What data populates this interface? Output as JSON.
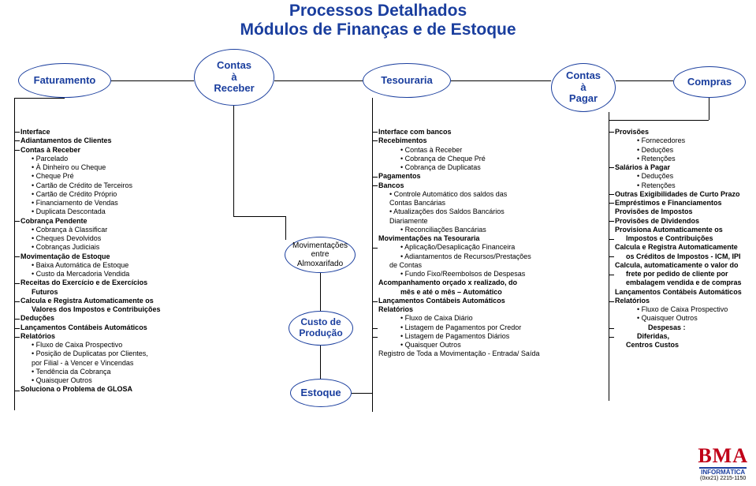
{
  "title": {
    "l1": "Processos Detalhados",
    "l2": "Módulos de Finanças e de Estoque"
  },
  "nodes": {
    "fatur": "Faturamento",
    "contas_receber": "Contas\nà\nReceber",
    "tesouraria": "Tesouraria",
    "contas_pagar": "Contas\nà\nPagar",
    "compras": "Compras",
    "movim": "Movimentações\nentre\nAlmoxarifado",
    "custo": "Custo de\nProdução",
    "estoque": "Estoque"
  },
  "col1": [
    {
      "t": "Interface",
      "b": 1,
      "i": 0
    },
    {
      "t": "Adiantamentos de Clientes",
      "b": 1,
      "i": 0
    },
    {
      "t": "Contas à Receber",
      "b": 1,
      "i": 0
    },
    {
      "t": "Parcelado",
      "b": 0,
      "i": 1,
      "d": 1
    },
    {
      "t": "À Dinheiro ou Cheque",
      "b": 0,
      "i": 1,
      "d": 1
    },
    {
      "t": "Cheque Pré",
      "b": 0,
      "i": 1,
      "d": 1
    },
    {
      "t": "Cartão de Crédito de Terceiros",
      "b": 0,
      "i": 1,
      "d": 1
    },
    {
      "t": "Cartão de Crédito Próprio",
      "b": 0,
      "i": 1,
      "d": 1
    },
    {
      "t": "Financiamento de Vendas",
      "b": 0,
      "i": 1,
      "d": 1
    },
    {
      "t": "Duplicata Descontada",
      "b": 0,
      "i": 1,
      "d": 1
    },
    {
      "t": "Cobrança Pendente",
      "b": 1,
      "i": 0
    },
    {
      "t": "Cobrança à Classificar",
      "b": 0,
      "i": 1,
      "d": 1
    },
    {
      "t": "Cheques Devolvidos",
      "b": 0,
      "i": 1,
      "d": 1
    },
    {
      "t": "Cobranças Judiciais",
      "b": 0,
      "i": 1,
      "d": 1
    },
    {
      "t": "Movimentação de Estoque",
      "b": 1,
      "i": 0
    },
    {
      "t": "Baixa Automática de Estoque",
      "b": 0,
      "i": 1,
      "d": 1
    },
    {
      "t": "Custo da Mercadoria Vendida",
      "b": 0,
      "i": 1,
      "d": 1
    },
    {
      "t": "Receitas do Exercício e de Exercícios",
      "b": 1,
      "i": 0
    },
    {
      "t": "Futuros",
      "b": 1,
      "i": 1
    },
    {
      "t": "Calcula e Registra Automaticamente os",
      "b": 1,
      "i": 0
    },
    {
      "t": "Valores dos Impostos e Contribuições",
      "b": 1,
      "i": 1
    },
    {
      "t": "Deduções",
      "b": 1,
      "i": 0
    },
    {
      "t": "Lançamentos Contábeis Automáticos",
      "b": 1,
      "i": 0
    },
    {
      "t": "Relatórios",
      "b": 1,
      "i": 0
    },
    {
      "t": "Fluxo de Caixa Prospectivo",
      "b": 0,
      "i": 1,
      "d": 1
    },
    {
      "t": "Posição de Duplicatas por Clientes,",
      "b": 0,
      "i": 1,
      "d": 1
    },
    {
      "t": "por Filial - à Vencer e Vincendas",
      "b": 0,
      "i": 1
    },
    {
      "t": "Tendência da Cobrança",
      "b": 0,
      "i": 1,
      "d": 1
    },
    {
      "t": "Quaisquer Outros",
      "b": 0,
      "i": 1,
      "d": 1
    },
    {
      "t": "Soluciona o Problema de GLOSA",
      "b": 1,
      "i": 0
    }
  ],
  "col2": [
    {
      "t": "Interface com bancos",
      "b": 1,
      "i": 0
    },
    {
      "t": "Recebimentos",
      "b": 1,
      "i": 0
    },
    {
      "t": "Contas à Receber",
      "b": 0,
      "i": 2,
      "d": 1
    },
    {
      "t": "Cobrança de Cheque Pré",
      "b": 0,
      "i": 2,
      "d": 1
    },
    {
      "t": "Cobrança de Duplicatas",
      "b": 0,
      "i": 2,
      "d": 1
    },
    {
      "t": "Pagamentos",
      "b": 1,
      "i": 0
    },
    {
      "t": "Bancos",
      "b": 1,
      "i": 0
    },
    {
      "t": "Controle Automático dos saldos das",
      "b": 0,
      "i": 1,
      "d": 1
    },
    {
      "t": "Contas Bancárias",
      "b": 0,
      "i": 1
    },
    {
      "t": "Atualizações dos Saldos Bancários",
      "b": 0,
      "i": 1,
      "d": 1
    },
    {
      "t": "Diariamente",
      "b": 0,
      "i": 1
    },
    {
      "t": "Reconciliações Bancárias",
      "b": 0,
      "i": 2,
      "d": 1
    },
    {
      "t": " ",
      "b": 0,
      "i": 0
    },
    {
      "t": "Movimentações na Tesouraria",
      "b": 1,
      "i": 0
    },
    {
      "t": "Aplicação/Desaplicação Financeira",
      "b": 0,
      "i": 2,
      "d": 1
    },
    {
      "t": "Adiantamentos de Recursos/Prestações",
      "b": 0,
      "i": 2,
      "d": 1
    },
    {
      "t": "de Contas",
      "b": 0,
      "i": 1
    },
    {
      "t": "Fundo Fixo/Reembolsos de Despesas",
      "b": 0,
      "i": 2,
      "d": 1
    },
    {
      "t": " ",
      "b": 0,
      "i": 0
    },
    {
      "t": "Acompanhamento orçado x realizado, do",
      "b": 1,
      "i": 0
    },
    {
      "t": "mês e até o mês – Automático",
      "b": 1,
      "i": 2
    },
    {
      "t": " ",
      "b": 0,
      "i": 0
    },
    {
      "t": "Lançamentos Contábeis Automáticos",
      "b": 1,
      "i": 0
    },
    {
      "t": "Relatórios",
      "b": 1,
      "i": 0
    },
    {
      "t": "Fluxo de Caixa Diário",
      "b": 0,
      "i": 2,
      "d": 1
    },
    {
      "t": "Listagem de Pagamentos por Credor",
      "b": 0,
      "i": 2,
      "d": 1
    },
    {
      "t": "Listagem de Pagamentos Diários",
      "b": 0,
      "i": 2,
      "d": 1
    },
    {
      "t": "Quaisquer Outros",
      "b": 0,
      "i": 2,
      "d": 1
    },
    {
      "t": "Registro de Toda a Movimentação - Entrada/ Saída",
      "b": 0,
      "i": 0
    }
  ],
  "col3": [
    {
      "t": "Provisões",
      "b": 1,
      "i": 0
    },
    {
      "t": "Fornecedores",
      "b": 0,
      "i": 2,
      "d": 1
    },
    {
      "t": "Deduções",
      "b": 0,
      "i": 2,
      "d": 1
    },
    {
      "t": "Retenções",
      "b": 0,
      "i": 2,
      "d": 1
    },
    {
      "t": "Salários à Pagar",
      "b": 1,
      "i": 0
    },
    {
      "t": "Deduções",
      "b": 0,
      "i": 2,
      "d": 1
    },
    {
      "t": "Retenções",
      "b": 0,
      "i": 2,
      "d": 1
    },
    {
      "t": "Outras Exigibilidades de Curto Prazo",
      "b": 1,
      "i": 0
    },
    {
      "t": "Empréstimos e Financiamentos",
      "b": 1,
      "i": 0
    },
    {
      "t": " ",
      "b": 0,
      "i": 0
    },
    {
      "t": "Provisões de Impostos",
      "b": 1,
      "i": 0
    },
    {
      "t": " ",
      "b": 0,
      "i": 0
    },
    {
      "t": "Provisões de Dividendos",
      "b": 1,
      "i": 0
    },
    {
      "t": " ",
      "b": 0,
      "i": 0
    },
    {
      "t": "Provisiona Automaticamente os",
      "b": 1,
      "i": 0
    },
    {
      "t": "Impostos e Contribuições",
      "b": 1,
      "i": 1
    },
    {
      "t": "Calcula e Registra Automaticamente",
      "b": 1,
      "i": 0
    },
    {
      "t": "os Créditos de Impostos - ICM, IPI",
      "b": 1,
      "i": 1
    },
    {
      "t": " ",
      "b": 0,
      "i": 0
    },
    {
      "t": "Calcula, automaticamente o valor do",
      "b": 1,
      "i": 0
    },
    {
      "t": "frete por pedido de cliente por",
      "b": 1,
      "i": 1
    },
    {
      "t": "embalagem vendida e de compras",
      "b": 1,
      "i": 1
    },
    {
      "t": "Lançamentos Contábeis Automáticos",
      "b": 1,
      "i": 0
    },
    {
      "t": "Relatórios",
      "b": 1,
      "i": 0
    },
    {
      "t": "Fluxo de Caixa Prospectivo",
      "b": 0,
      "i": 2,
      "d": 1
    },
    {
      "t": "Quaisquer Outros",
      "b": 0,
      "i": 2,
      "d": 1
    },
    {
      "t": "Despesas :",
      "b": 1,
      "i": 3
    },
    {
      "t": "Diferidas,",
      "b": 1,
      "i": 2
    },
    {
      "t": "Centros Custos",
      "b": 1,
      "i": 1
    }
  ],
  "logo": {
    "brand": "BMA",
    "sub": "INFORMÁTICA",
    "tel": "(0xx21) 2215-1150"
  }
}
